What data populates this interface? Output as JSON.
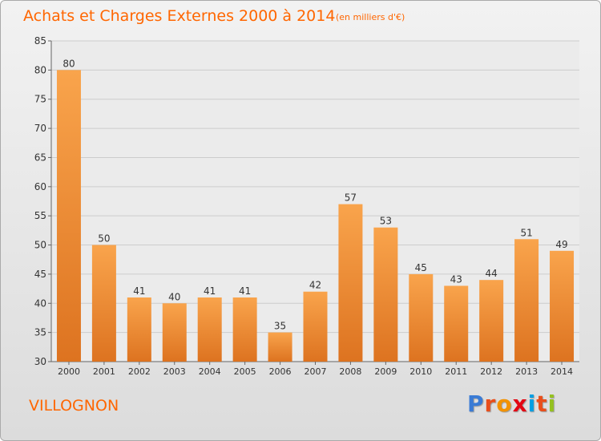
{
  "title": "Achats et Charges Externes 2000 à 2014",
  "unit_note": "(en milliers d'€)",
  "commune": "VILLOGNON",
  "logo": {
    "text": "Proxiti",
    "colors": [
      "#3a7bd5",
      "#e94e1b",
      "#f39200",
      "#e30613",
      "#009fe3",
      "#e94e1b",
      "#95c11f"
    ]
  },
  "colors": {
    "title": "#ff6600",
    "bar_light": "#f9a44c",
    "bar_dark": "#dd7320",
    "grid": "#cccccc",
    "axis_text": "#333333"
  },
  "chart_data": {
    "type": "bar",
    "categories": [
      "2000",
      "2001",
      "2002",
      "2003",
      "2004",
      "2005",
      "2006",
      "2007",
      "2008",
      "2009",
      "2010",
      "2011",
      "2012",
      "2013",
      "2014"
    ],
    "values": [
      80,
      50,
      41,
      40,
      41,
      41,
      35,
      42,
      57,
      53,
      45,
      43,
      44,
      51,
      49
    ],
    "ylim": [
      30,
      85
    ],
    "yticks": [
      30,
      35,
      40,
      45,
      50,
      55,
      60,
      65,
      70,
      75,
      80,
      85
    ],
    "grid": true,
    "data_labels": true
  }
}
